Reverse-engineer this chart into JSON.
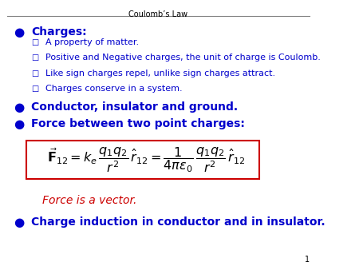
{
  "title": "Coulomb’s Law",
  "bg_color": "#ffffff",
  "title_color": "#000000",
  "blue": "#0000cc",
  "red": "#cc0000",
  "title_fontsize": 7,
  "main_fontsize": 10,
  "sub_fontsize": 8,
  "page_num": "1",
  "bullet1_head": "Charges:",
  "sub_bullets": [
    "A property of matter.",
    "Positive and Negative charges, the unit of charge is Coulomb.",
    "Like sign charges repel, unlike sign charges attract.",
    "Charges conserve in a system."
  ],
  "bullet2": "Conductor, insulator and ground.",
  "bullet3": "Force between two point charges:",
  "equation": "$\\vec{\\mathbf{F}}_{12} = k_e\\,\\dfrac{q_1 q_2}{r^2}\\,\\hat{r}_{12} = \\dfrac{1}{4\\pi\\varepsilon_0}\\,\\dfrac{q_1 q_2}{r^2}\\,\\hat{r}_{12}$",
  "note": "Force is a vector.",
  "bullet4": "Charge induction in conductor and in insulator.",
  "box_color": "#cc0000"
}
